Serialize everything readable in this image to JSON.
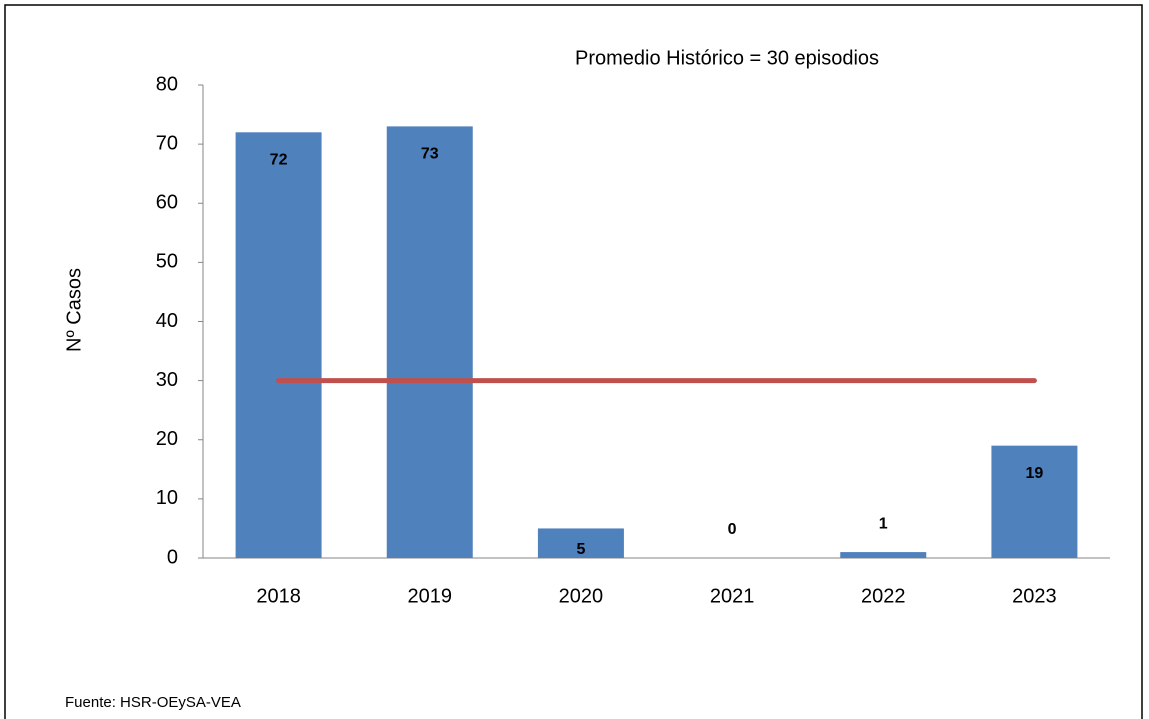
{
  "chart_data": {
    "type": "bar",
    "y_label": "Nº  Casos",
    "categories": [
      "2018",
      "2019",
      "2020",
      "2021",
      "2022",
      "2023"
    ],
    "values": [
      72,
      73,
      5,
      0,
      1,
      19
    ],
    "color": "#4f81bd",
    "ylim": [
      0,
      80
    ],
    "yticks": [
      0,
      10,
      20,
      30,
      40,
      50,
      60,
      70,
      80
    ],
    "grid": false,
    "reference_line": {
      "value": 30,
      "label": "Promedio Histórico  = 30 episodios",
      "color": "#c0504d"
    },
    "source": "Fuente: HSR-OEySA-VEA"
  }
}
